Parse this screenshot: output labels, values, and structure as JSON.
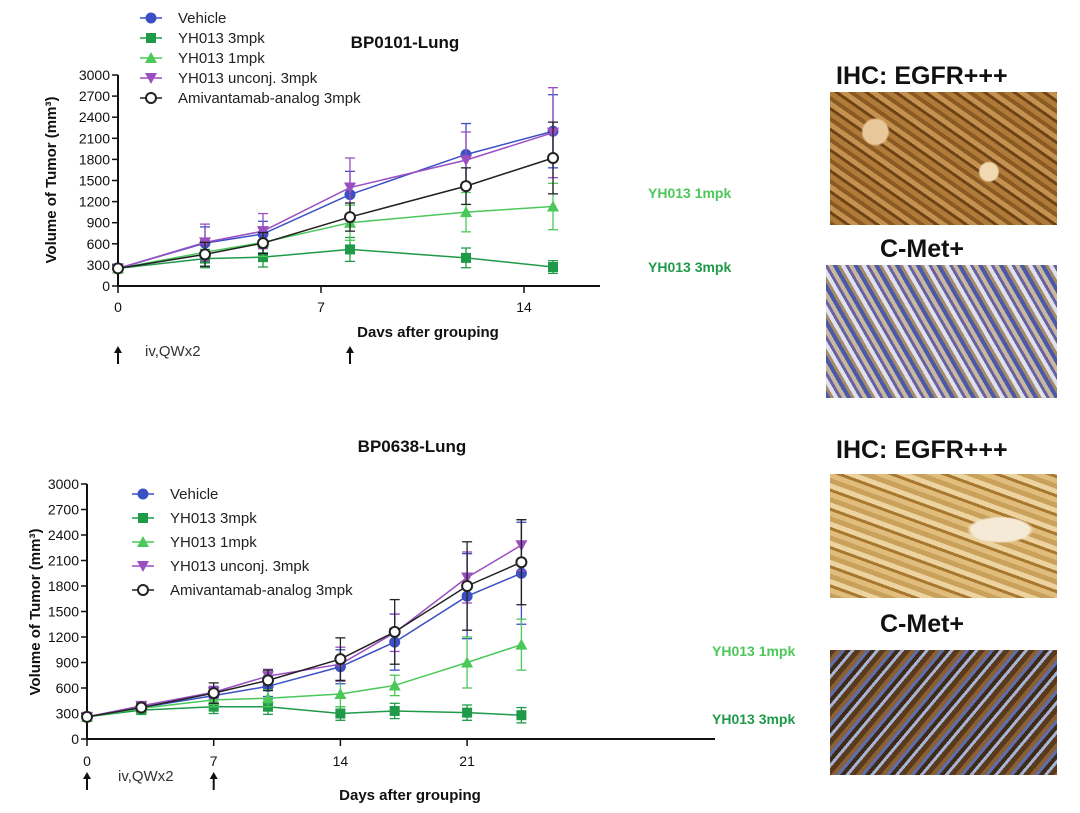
{
  "colors": {
    "vehicle": "#3b50c4",
    "yh013_3mpk": "#1f9a48",
    "yh013_1mpk": "#4cc85a",
    "unconj": "#9b4fc0",
    "amiv": "#222222"
  },
  "chart_data": [
    {
      "type": "line",
      "title": "BP0101-Lung",
      "xlabel": "Davs after grouping",
      "ylabel": "Volume of Tumor (mm³)",
      "xlim": [
        0,
        16.5
      ],
      "ylim": [
        0,
        3000
      ],
      "xticks": [
        "0",
        "7",
        "14"
      ],
      "yticks": [
        "0",
        "300",
        "600",
        "900",
        "1200",
        "1500",
        "1800",
        "2100",
        "2400",
        "2700",
        "3000"
      ],
      "legend_position": "top-left",
      "x": [
        0,
        3,
        5,
        8,
        12,
        15
      ],
      "series": [
        {
          "name": "Vehicle",
          "marker": "circle",
          "values": [
            250,
            610,
            740,
            1300,
            1870,
            2200
          ],
          "error": [
            30,
            230,
            180,
            330,
            440,
            520
          ]
        },
        {
          "name": "YH013 3mpk",
          "marker": "square",
          "values": [
            250,
            390,
            410,
            520,
            400,
            270
          ],
          "error": [
            30,
            130,
            140,
            170,
            140,
            90
          ]
        },
        {
          "name": "YH013 1mpk",
          "marker": "triangle-up",
          "values": [
            250,
            480,
            620,
            900,
            1050,
            1130
          ],
          "error": [
            30,
            200,
            200,
            250,
            280,
            330
          ]
        },
        {
          "name": "YH013 unconj. 3mpk",
          "marker": "triangle-down",
          "values": [
            250,
            620,
            780,
            1400,
            1790,
            2180
          ],
          "error": [
            30,
            260,
            250,
            420,
            400,
            640
          ]
        },
        {
          "name": "Amivantamab-analog 3mpk",
          "marker": "open-circle",
          "values": [
            250,
            450,
            610,
            980,
            1420,
            1820
          ],
          "error": [
            30,
            170,
            150,
            200,
            260,
            510
          ]
        }
      ],
      "annotations": {
        "dosing": "iv,QWx2",
        "dose_days": [
          0,
          8
        ],
        "label_1mpk": "YH013 1mpk",
        "label_3mpk": "YH013 3mpk"
      }
    },
    {
      "type": "line",
      "title": "BP0638-Lung",
      "xlabel": "Days after grouping",
      "ylabel": "Volume of Tumor (mm³)",
      "xlim": [
        0,
        27
      ],
      "ylim": [
        0,
        3000
      ],
      "xticks": [
        "0",
        "7",
        "14",
        "21"
      ],
      "yticks": [
        "0",
        "300",
        "600",
        "900",
        "1200",
        "1500",
        "1800",
        "2100",
        "2400",
        "2700",
        "3000"
      ],
      "legend_position": "top-left",
      "x": [
        0,
        3,
        7,
        10,
        14,
        17,
        21,
        24
      ],
      "series": [
        {
          "name": "Vehicle",
          "marker": "circle",
          "values": [
            260,
            370,
            510,
            620,
            850,
            1140,
            1680,
            1950
          ],
          "error": [
            30,
            50,
            100,
            120,
            200,
            330,
            500,
            600
          ]
        },
        {
          "name": "YH013 3mpk",
          "marker": "square",
          "values": [
            260,
            340,
            380,
            380,
            300,
            330,
            310,
            280
          ],
          "error": [
            30,
            40,
            80,
            90,
            80,
            90,
            90,
            90
          ]
        },
        {
          "name": "YH013 1mpk",
          "marker": "triangle-up",
          "values": [
            260,
            360,
            460,
            480,
            530,
            630,
            900,
            1110
          ],
          "error": [
            30,
            40,
            80,
            100,
            150,
            120,
            300,
            300
          ]
        },
        {
          "name": "YH013 unconj. 3mpk",
          "marker": "triangle-down",
          "values": [
            260,
            390,
            550,
            740,
            880,
            1250,
            1900,
            2280
          ],
          "error": [
            30,
            50,
            70,
            80,
            200,
            220,
            300,
            300
          ]
        },
        {
          "name": "Amivantamab-analog 3mpk",
          "marker": "open-circle",
          "values": [
            260,
            370,
            540,
            690,
            940,
            1260,
            1800,
            2080
          ],
          "error": [
            30,
            50,
            120,
            120,
            250,
            380,
            520,
            500
          ]
        }
      ],
      "annotations": {
        "dosing": "iv,QWx2",
        "dose_days": [
          0,
          7
        ],
        "label_1mpk": "YH013 1mpk",
        "label_3mpk": "YH013 3mpk"
      }
    }
  ],
  "ihc": {
    "top_egfr": "IHC: EGFR+++",
    "top_cmet": "C-Met+",
    "bottom_egfr": "IHC: EGFR+++",
    "bottom_cmet": "C-Met+"
  }
}
